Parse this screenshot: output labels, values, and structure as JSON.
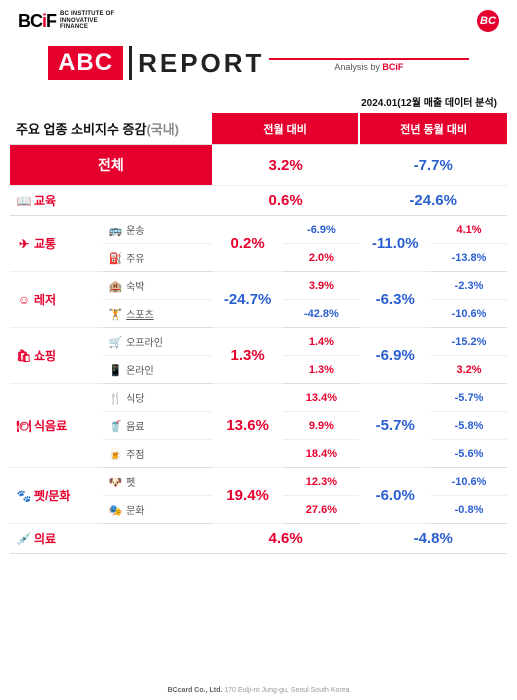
{
  "header": {
    "bcif_black1": "BC",
    "bcif_red": "i",
    "bcif_black2": "F",
    "bcif_sub": "BC INSTITUTE OF\nINNOVATIVE\nFINANCE",
    "bc_badge": "BC"
  },
  "title": {
    "abc": "ABC",
    "report": "REPORT",
    "analysis_prefix": "Analysis by ",
    "analysis_brand": "BCiF"
  },
  "date_line": "2024.01(12월 매출 데이터 분석)",
  "table": {
    "heading_main": "주요 업종 소비지수 증감",
    "heading_suffix": "(국내)",
    "col_mom": "전월 대비",
    "col_yoy": "전년 동월 대비",
    "all_label": "전체",
    "all_mom": "3.2%",
    "all_yoy": "-7.7%",
    "colors": {
      "pos": "#e6002d",
      "neg": "#2a5fd0",
      "brand": "#e6002d"
    },
    "rows": [
      {
        "cat_icon": "📖",
        "cat": "교육",
        "mom": "0.6%",
        "mom_sign": "pos",
        "yoy": "-24.6%",
        "yoy_sign": "neg",
        "subs": []
      },
      {
        "cat_icon": "✈",
        "cat": "교통",
        "mom": "0.2%",
        "mom_sign": "pos",
        "yoy": "-11.0%",
        "yoy_sign": "neg",
        "subs": [
          {
            "icon": "🚌",
            "label": "운송",
            "mom": "-6.9%",
            "mom_sign": "neg",
            "yoy": "4.1%",
            "yoy_sign": "pos"
          },
          {
            "icon": "⛽",
            "label": "주유",
            "mom": "2.0%",
            "mom_sign": "pos",
            "yoy": "-13.8%",
            "yoy_sign": "neg"
          }
        ]
      },
      {
        "cat_icon": "☺",
        "cat": "레저",
        "mom": "-24.7%",
        "mom_sign": "neg",
        "yoy": "-6.3%",
        "yoy_sign": "neg",
        "subs": [
          {
            "icon": "🏨",
            "label": "숙박",
            "mom": "3.9%",
            "mom_sign": "pos",
            "yoy": "-2.3%",
            "yoy_sign": "neg"
          },
          {
            "icon": "🏋",
            "label": "스포츠",
            "underline": true,
            "mom": "-42.8%",
            "mom_sign": "neg",
            "yoy": "-10.6%",
            "yoy_sign": "neg"
          }
        ]
      },
      {
        "cat_icon": "🛍",
        "cat": "쇼핑",
        "mom": "1.3%",
        "mom_sign": "pos",
        "yoy": "-6.9%",
        "yoy_sign": "neg",
        "subs": [
          {
            "icon": "🛒",
            "label": "오프라인",
            "mom": "1.4%",
            "mom_sign": "pos",
            "yoy": "-15.2%",
            "yoy_sign": "neg"
          },
          {
            "icon": "📱",
            "label": "온라인",
            "mom": "1.3%",
            "mom_sign": "pos",
            "yoy": "3.2%",
            "yoy_sign": "pos"
          }
        ]
      },
      {
        "cat_icon": "🍽",
        "cat": "식음료",
        "mom": "13.6%",
        "mom_sign": "pos",
        "yoy": "-5.7%",
        "yoy_sign": "neg",
        "subs": [
          {
            "icon": "🍴",
            "label": "식당",
            "mom": "13.4%",
            "mom_sign": "pos",
            "yoy": "-5.7%",
            "yoy_sign": "neg"
          },
          {
            "icon": "🥤",
            "label": "음료",
            "mom": "9.9%",
            "mom_sign": "pos",
            "yoy": "-5.8%",
            "yoy_sign": "neg"
          },
          {
            "icon": "🍺",
            "label": "주점",
            "mom": "18.4%",
            "mom_sign": "pos",
            "yoy": "-5.6%",
            "yoy_sign": "neg"
          }
        ]
      },
      {
        "cat_icon": "🐾",
        "cat": "펫/문화",
        "mom": "19.4%",
        "mom_sign": "pos",
        "yoy": "-6.0%",
        "yoy_sign": "neg",
        "subs": [
          {
            "icon": "🐶",
            "label": "펫",
            "mom": "12.3%",
            "mom_sign": "pos",
            "yoy": "-10.6%",
            "yoy_sign": "neg"
          },
          {
            "icon": "🎭",
            "label": "문화",
            "mom": "27.6%",
            "mom_sign": "pos",
            "yoy": "-0.8%",
            "yoy_sign": "neg"
          }
        ]
      },
      {
        "cat_icon": "💉",
        "cat": "의료",
        "mom": "4.6%",
        "mom_sign": "pos",
        "yoy": "-4.8%",
        "yoy_sign": "neg",
        "subs": []
      }
    ]
  },
  "footer": {
    "company": "BCcard Co., Ltd.",
    "address": " 170 Eulji-ro Jung-gu, Seoul South Korea"
  }
}
